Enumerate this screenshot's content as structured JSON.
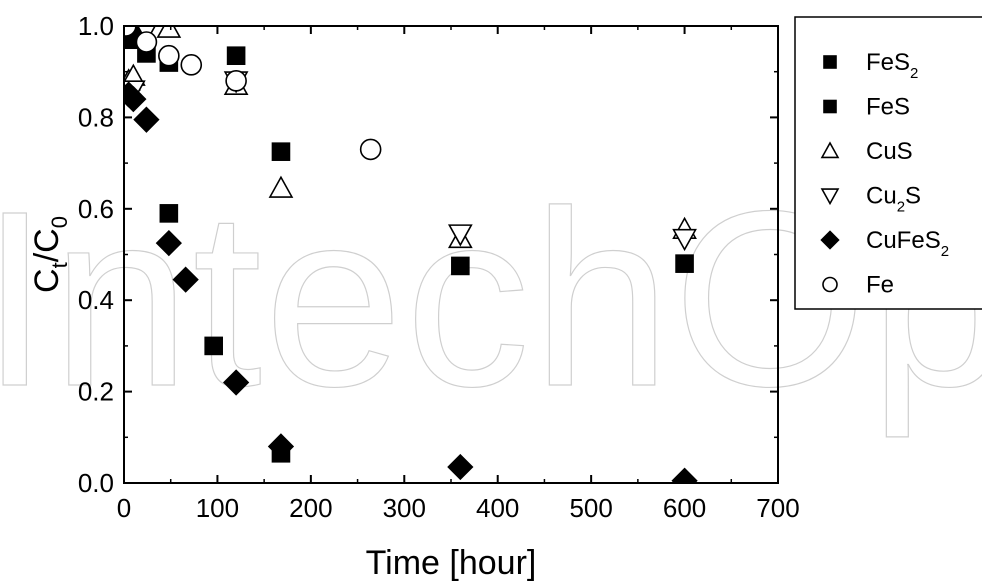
{
  "watermark": "IntechOpen",
  "chart_data": {
    "type": "scatter",
    "xlabel": "Time [hour]",
    "ylabel": {
      "main": "C",
      "sub1": "t",
      "sep": "/C",
      "sub2": "0"
    },
    "xlim": [
      0,
      700
    ],
    "ylim": [
      0,
      1.0
    ],
    "xticks": [
      "0",
      "100",
      "200",
      "300",
      "400",
      "500",
      "600",
      "700"
    ],
    "yticks": [
      "0.0",
      "0.2",
      "0.4",
      "0.6",
      "0.8",
      "1.0"
    ],
    "grid": false,
    "legend_position": "right",
    "series": [
      {
        "name": "FeS2",
        "label_main": "FeS",
        "label_sub": "2",
        "label_tail": "",
        "marker": "square",
        "filled": true,
        "size": 17,
        "points": [
          [
            10,
            0.97
          ],
          [
            20,
            0.99
          ],
          [
            48,
            0.92
          ],
          [
            120,
            0.935
          ]
        ]
      },
      {
        "name": "FeS",
        "label_main": "FeS",
        "label_sub": "",
        "label_tail": "",
        "marker": "square",
        "filled": true,
        "size": 17,
        "points": [
          [
            24,
            0.94
          ],
          [
            48,
            0.59
          ],
          [
            96,
            0.3
          ],
          [
            168,
            0.725
          ],
          [
            168,
            0.065
          ],
          [
            360,
            0.475
          ],
          [
            600,
            0.48
          ]
        ]
      },
      {
        "name": "CuS",
        "label_main": "CuS",
        "label_sub": "",
        "label_tail": "",
        "marker": "triangle-up",
        "filled": false,
        "size": 22,
        "points": [
          [
            5,
            0.88
          ],
          [
            10,
            0.89
          ],
          [
            48,
            0.995
          ],
          [
            120,
            0.87
          ],
          [
            168,
            0.645
          ],
          [
            360,
            0.535
          ],
          [
            600,
            0.555
          ]
        ]
      },
      {
        "name": "Cu2S",
        "label_main": "Cu",
        "label_sub": "2",
        "label_tail": "S",
        "marker": "triangle-down",
        "filled": false,
        "size": 22,
        "points": [
          [
            5,
            0.855
          ],
          [
            10,
            0.86
          ],
          [
            24,
            0.99
          ],
          [
            120,
            0.88
          ],
          [
            360,
            0.545
          ],
          [
            600,
            0.535
          ]
        ]
      },
      {
        "name": "CuFeS2",
        "label_main": "CuFeS",
        "label_sub": "2",
        "label_tail": "",
        "marker": "diamond",
        "filled": true,
        "size": 24,
        "points": [
          [
            5,
            0.85
          ],
          [
            10,
            0.84
          ],
          [
            24,
            0.795
          ],
          [
            48,
            0.525
          ],
          [
            66,
            0.445
          ],
          [
            120,
            0.22
          ],
          [
            168,
            0.08
          ],
          [
            360,
            0.035
          ],
          [
            600,
            0.005
          ]
        ]
      },
      {
        "name": "Fe",
        "label_main": "Fe",
        "label_sub": "",
        "label_tail": "",
        "marker": "circle",
        "filled": false,
        "size": 20,
        "points": [
          [
            2,
            1.0
          ],
          [
            24,
            0.965
          ],
          [
            48,
            0.935
          ],
          [
            72,
            0.915
          ],
          [
            120,
            0.88
          ],
          [
            264,
            0.73
          ]
        ]
      }
    ]
  }
}
